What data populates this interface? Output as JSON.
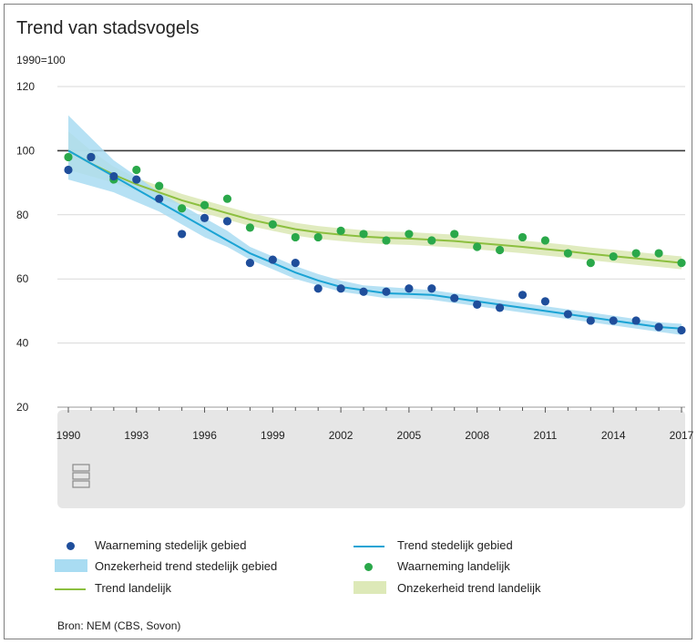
{
  "chart_data": {
    "type": "scatter",
    "title": "Trend van stadsvogels",
    "ylabel": "1990=100",
    "ylim": [
      20,
      120
    ],
    "yticks": [
      20,
      40,
      60,
      80,
      100,
      120
    ],
    "xlim": [
      1990,
      2017
    ],
    "xticks": [
      1990,
      1993,
      1996,
      1999,
      2002,
      2005,
      2008,
      2011,
      2014,
      2017
    ],
    "reference_line": 100,
    "colors": {
      "stedelijk": "#1f4e9b",
      "stedelijk_trend": "#1aa3d4",
      "stedelijk_band": "#a9dcf2",
      "landelijk": "#2aa84a",
      "landelijk_trend": "#8cbf3f",
      "landelijk_band": "#dde9b8"
    },
    "series": [
      {
        "name": "Waarneming stedelijk gebied",
        "kind": "points",
        "x": [
          1990,
          1991,
          1992,
          1993,
          1994,
          1995,
          1996,
          1997,
          1998,
          1999,
          2000,
          2001,
          2002,
          2003,
          2004,
          2005,
          2006,
          2007,
          2008,
          2009,
          2010,
          2011,
          2012,
          2013,
          2014,
          2015,
          2016,
          2017
        ],
        "y": [
          94,
          98,
          92,
          91,
          85,
          74,
          79,
          78,
          65,
          66,
          65,
          57,
          57,
          56,
          56,
          57,
          57,
          54,
          52,
          51,
          55,
          53,
          49,
          47,
          47,
          47,
          45,
          44
        ]
      },
      {
        "name": "Trend stedelijk gebied",
        "kind": "line",
        "x": [
          1990,
          1991,
          1992,
          1993,
          1994,
          1995,
          1996,
          1997,
          1998,
          1999,
          2000,
          2001,
          2002,
          2003,
          2004,
          2005,
          2006,
          2007,
          2008,
          2009,
          2010,
          2011,
          2012,
          2013,
          2014,
          2015,
          2016,
          2017
        ],
        "y": [
          100,
          96,
          92,
          88,
          84,
          80,
          76,
          72,
          68,
          65,
          62,
          59.5,
          57.5,
          56.5,
          55.5,
          55.3,
          55,
          54,
          53,
          52,
          51,
          50,
          49,
          48,
          47,
          46,
          45,
          44.5
        ],
        "lower": [
          91,
          89,
          87,
          84,
          81,
          77,
          73,
          70,
          66,
          63,
          60,
          58,
          56,
          55,
          54,
          54,
          53.5,
          52.5,
          51.5,
          50.5,
          49.5,
          48.5,
          47.5,
          46.5,
          45.5,
          44.5,
          43.5,
          42.5
        ],
        "upper": [
          111,
          104,
          97,
          92,
          87,
          83,
          79,
          75,
          70,
          67,
          64,
          61.5,
          59.5,
          58,
          57.5,
          57,
          56.5,
          55.5,
          54.5,
          53.5,
          52.5,
          51.5,
          50.5,
          49.5,
          48.5,
          47.5,
          46.5,
          46
        ]
      },
      {
        "name": "Waarneming landelijk",
        "kind": "points",
        "x": [
          1990,
          1991,
          1992,
          1993,
          1994,
          1995,
          1996,
          1997,
          1998,
          1999,
          2000,
          2001,
          2002,
          2003,
          2004,
          2005,
          2006,
          2007,
          2008,
          2009,
          2010,
          2011,
          2012,
          2013,
          2014,
          2015,
          2016,
          2017
        ],
        "y": [
          98,
          98,
          91,
          94,
          89,
          82,
          83,
          85,
          76,
          77,
          73,
          73,
          75,
          74,
          72,
          74,
          72,
          74,
          70,
          69,
          73,
          72,
          68,
          65,
          67,
          68,
          68,
          65
        ]
      },
      {
        "name": "Trend landelijk",
        "kind": "line",
        "x": [
          1990,
          1991,
          1992,
          1993,
          1994,
          1995,
          1996,
          1997,
          1998,
          1999,
          2000,
          2001,
          2002,
          2003,
          2004,
          2005,
          2006,
          2007,
          2008,
          2009,
          2010,
          2011,
          2012,
          2013,
          2014,
          2015,
          2016,
          2017
        ],
        "y": [
          100,
          96,
          92.5,
          89.5,
          87,
          84.5,
          82.5,
          80.5,
          78.5,
          77,
          75.5,
          74.5,
          73.8,
          73.2,
          72.8,
          72.6,
          72.2,
          71.8,
          71.2,
          70.6,
          70,
          69.3,
          68.6,
          67.8,
          67.1,
          66.4,
          65.7,
          65
        ]
      },
      {
        "name": "Onzekerheid trend stedelijk gebied",
        "kind": "band",
        "of": "Trend stedelijk gebied"
      },
      {
        "name": "Onzekerheid trend landelijk",
        "kind": "band",
        "x": [
          1990,
          1991,
          1992,
          1993,
          1994,
          1995,
          1996,
          1997,
          1998,
          1999,
          2000,
          2001,
          2002,
          2003,
          2004,
          2005,
          2006,
          2007,
          2008,
          2009,
          2010,
          2011,
          2012,
          2013,
          2014,
          2015,
          2016,
          2017
        ],
        "lower": [
          94,
          92,
          90,
          87.5,
          85,
          83,
          80.5,
          78.5,
          76.5,
          75,
          73.5,
          72.5,
          71.8,
          71.2,
          70.8,
          70.6,
          70.2,
          69.8,
          69.2,
          68.6,
          68,
          67.3,
          66.6,
          65.8,
          65.1,
          64.4,
          63.7,
          63
        ],
        "upper": [
          106,
          100,
          95,
          91.5,
          89,
          86.5,
          84.5,
          82.5,
          80.5,
          79,
          77.5,
          76.5,
          75.8,
          75.2,
          74.8,
          74.6,
          74.2,
          73.8,
          73.2,
          72.6,
          72,
          71.3,
          70.6,
          69.8,
          69.1,
          68.4,
          67.7,
          67
        ]
      }
    ]
  },
  "legend": {
    "items": [
      {
        "label": "Waarneming stedelijk gebied"
      },
      {
        "label": "Trend stedelijk gebied"
      },
      {
        "label": "Onzekerheid trend stedelijk gebied"
      },
      {
        "label": "Waarneming landelijk"
      },
      {
        "label": "Trend landelijk"
      },
      {
        "label": "Onzekerheid trend landelijk"
      }
    ]
  },
  "source": "Bron: NEM (CBS, Sovon)",
  "logo": {
    "icon": "cbs-logo-icon"
  }
}
